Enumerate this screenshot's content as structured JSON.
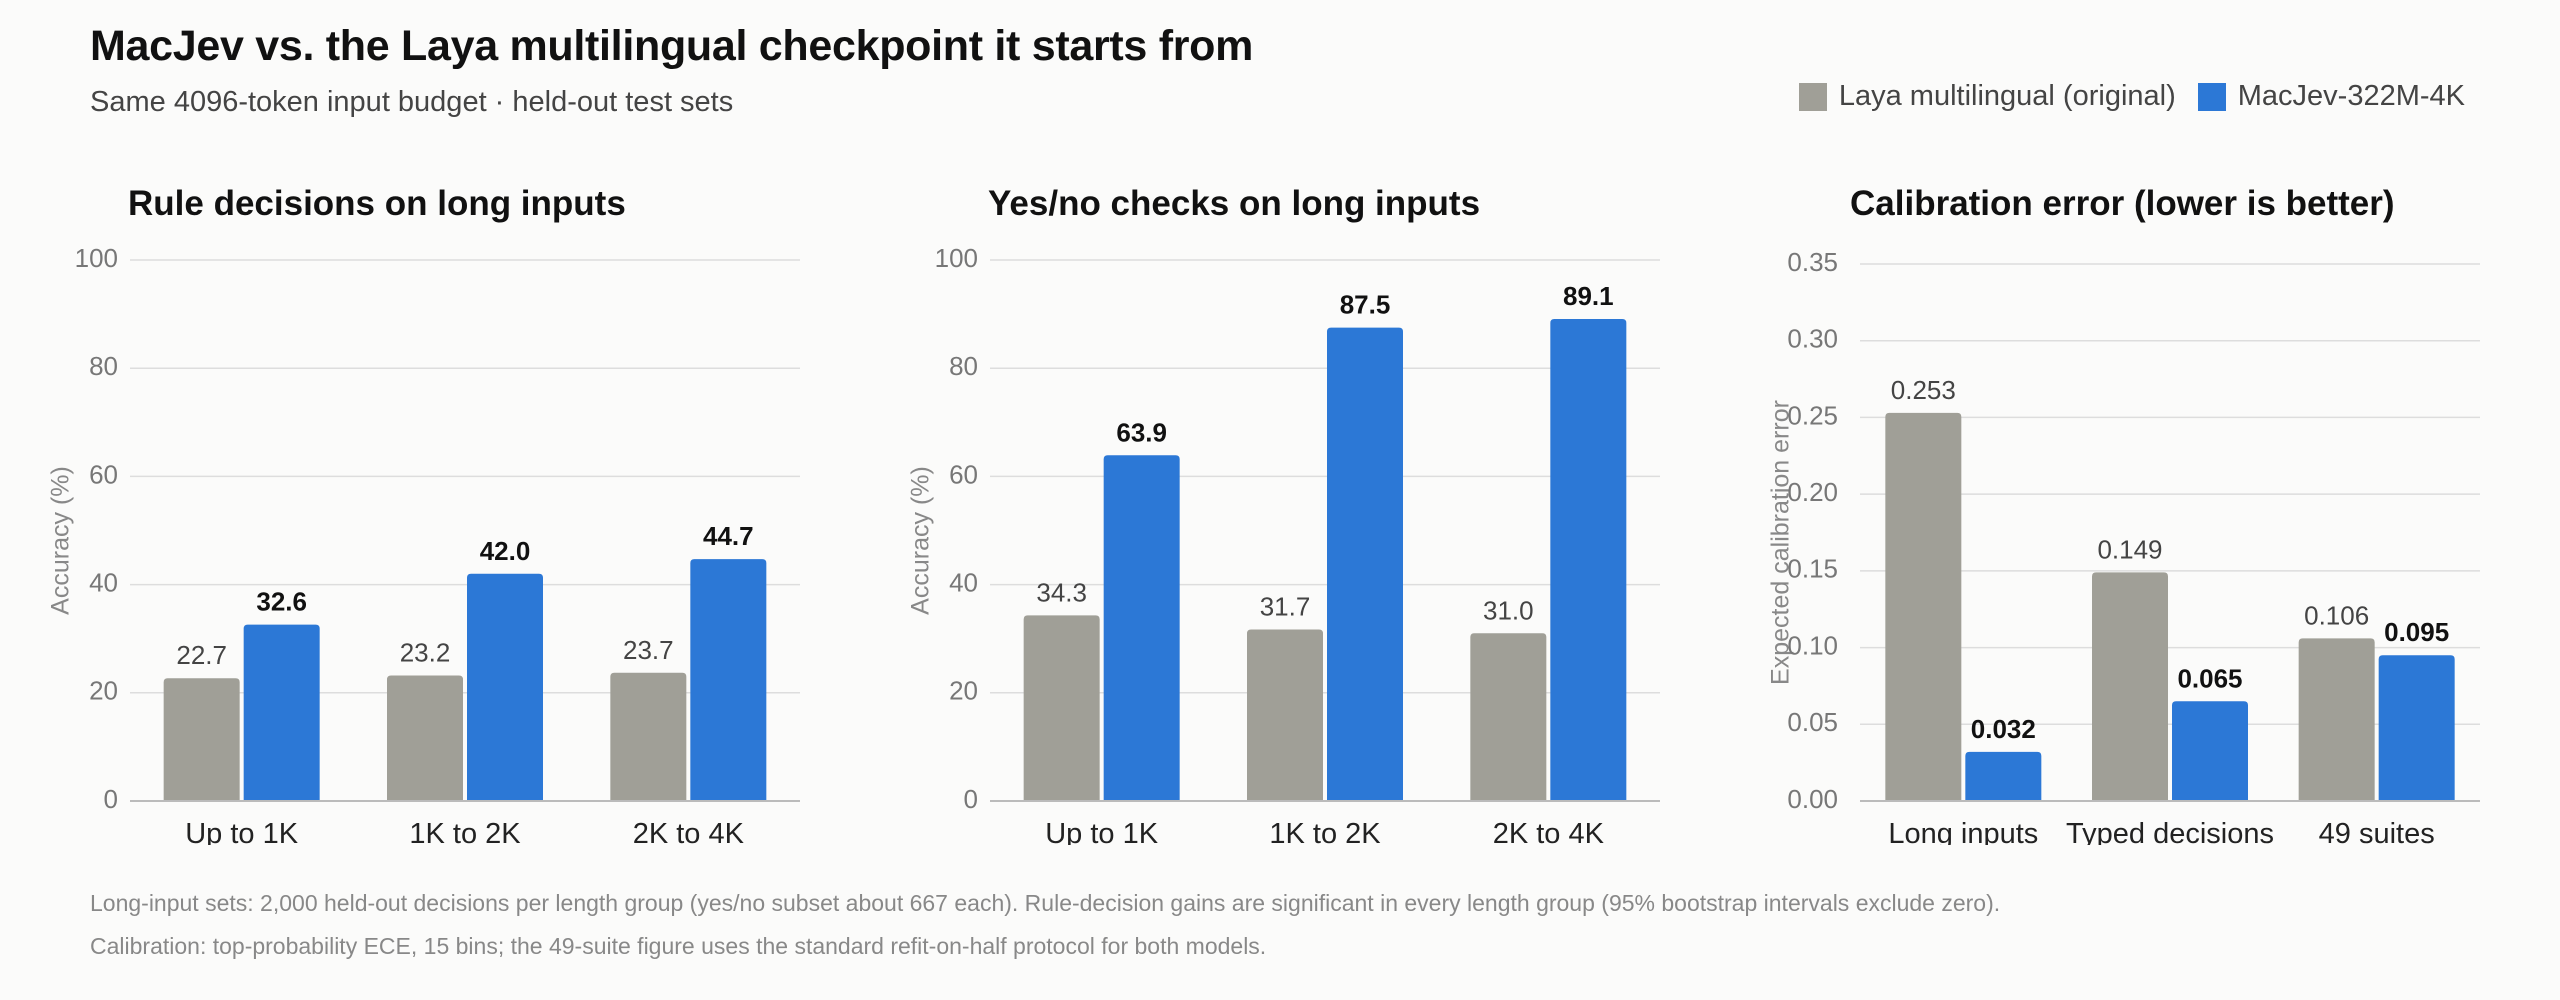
{
  "header": {
    "title": "MacJev vs. the Laya multilingual checkpoint it starts from",
    "subtitle": "Same 4096-token input budget  ·  held-out test sets"
  },
  "legend": {
    "items": [
      {
        "label": "Laya multilingual (original)",
        "color": "#a09f97"
      },
      {
        "label": "MacJev-322M-4K",
        "color": "#2c78d6"
      }
    ]
  },
  "colors": {
    "baseline": "#a09f97",
    "macjev": "#2c78d6",
    "grid": "#dddddd",
    "axis": "#bbbbbb"
  },
  "chart_data": [
    {
      "type": "bar",
      "title": "Rule decisions on long inputs",
      "ylabel": "Accuracy (%)",
      "xlabel": "",
      "ylim": [
        0,
        100
      ],
      "yticks": [
        0,
        20,
        40,
        60,
        80,
        100
      ],
      "ytick_labels": [
        "0",
        "20",
        "40",
        "60",
        "80",
        "100"
      ],
      "categories": [
        "Up to 1K",
        "1K to 2K",
        "2K to 4K"
      ],
      "series": [
        {
          "name": "Laya multilingual (original)",
          "values": [
            22.7,
            23.2,
            23.7
          ],
          "labels": [
            "22.7",
            "23.2",
            "23.7"
          ]
        },
        {
          "name": "MacJev-322M-4K",
          "values": [
            32.6,
            42.0,
            44.7
          ],
          "labels": [
            "32.6",
            "42.0",
            "44.7"
          ]
        }
      ],
      "grid": true,
      "legend": "top-right"
    },
    {
      "type": "bar",
      "title": "Yes/no checks on long inputs",
      "ylabel": "Accuracy (%)",
      "xlabel": "",
      "ylim": [
        0,
        100
      ],
      "yticks": [
        0,
        20,
        40,
        60,
        80,
        100
      ],
      "ytick_labels": [
        "0",
        "20",
        "40",
        "60",
        "80",
        "100"
      ],
      "categories": [
        "Up to 1K",
        "1K to 2K",
        "2K to 4K"
      ],
      "series": [
        {
          "name": "Laya multilingual (original)",
          "values": [
            34.3,
            31.7,
            31.0
          ],
          "labels": [
            "34.3",
            "31.7",
            "31.0"
          ]
        },
        {
          "name": "MacJev-322M-4K",
          "values": [
            63.9,
            87.5,
            89.1
          ],
          "labels": [
            "63.9",
            "87.5",
            "89.1"
          ]
        }
      ],
      "grid": true,
      "legend": "top-right"
    },
    {
      "type": "bar",
      "title": "Calibration error (lower is better)",
      "ylabel": "Expected calibration error",
      "xlabel": "",
      "ylim": [
        0,
        0.35
      ],
      "yticks": [
        0,
        0.05,
        0.1,
        0.15,
        0.2,
        0.25,
        0.3,
        0.35
      ],
      "ytick_labels": [
        "0.00",
        "0.05",
        "0.10",
        "0.15",
        "0.20",
        "0.25",
        "0.30",
        "0.35"
      ],
      "categories": [
        "Long inputs",
        "Typed decisions",
        "49 suites"
      ],
      "series": [
        {
          "name": "Laya multilingual (original)",
          "values": [
            0.253,
            0.149,
            0.106
          ],
          "labels": [
            "0.253",
            "0.149",
            "0.106"
          ]
        },
        {
          "name": "MacJev-322M-4K",
          "values": [
            0.032,
            0.065,
            0.095
          ],
          "labels": [
            "0.032",
            "0.065",
            "0.095"
          ]
        }
      ],
      "grid": true,
      "legend": "top-right"
    }
  ],
  "footnotes": [
    "Long-input sets: 2,000 held-out decisions per length group (yes/no subset about 667 each). Rule-decision gains are significant in every length group (95% bootstrap intervals exclude zero).",
    "Calibration: top-probability ECE, 15 bins; the 49-suite figure uses the standard refit-on-half protocol for both models."
  ]
}
